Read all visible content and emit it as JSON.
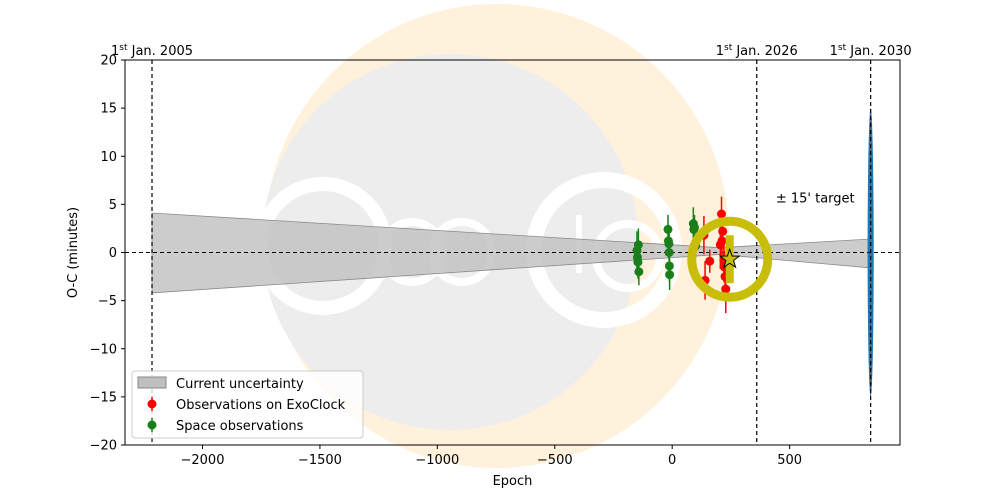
{
  "chart_data": {
    "type": "scatter",
    "xlabel": "Epoch",
    "ylabel": "O-C (minutes)",
    "xlim": [
      -2330,
      970
    ],
    "ylim": [
      -20,
      20
    ],
    "xticks": [
      -2000,
      -1500,
      -1000,
      -500,
      0,
      500
    ],
    "xtick_labels": [
      "−2000",
      "−1500",
      "−1000",
      "−500",
      "0",
      "500"
    ],
    "yticks": [
      -20,
      -15,
      -10,
      -5,
      0,
      5,
      10,
      15,
      20
    ],
    "ytick_labels": [
      "−20",
      "−15",
      "−10",
      "−5",
      "0",
      "5",
      "10",
      "15",
      "20"
    ],
    "grid": false,
    "legend_position": "lower-left",
    "date_markers": [
      {
        "epoch": -2215,
        "label_sup": "st",
        "label_pre": "1",
        "label_post": " Jan. 2005"
      },
      {
        "epoch": 360,
        "label_sup": "st",
        "label_pre": "1",
        "label_post": " Jan. 2026"
      },
      {
        "epoch": 845,
        "label_sup": "st",
        "label_pre": "1",
        "label_post": " Jan. 2030"
      }
    ],
    "uncertainty_band": {
      "name": "Current uncertainty",
      "color": "#bfbfbf",
      "points": [
        [
          -2215,
          4.1
        ],
        [
          -2215,
          -4.2
        ],
        [
          200,
          -0.2
        ],
        [
          845,
          -1.6
        ],
        [
          845,
          1.4
        ],
        [
          200,
          0.5
        ]
      ]
    },
    "target_ellipse": {
      "label": "± 15' target",
      "x": 845,
      "y": 0,
      "rx_data": 52,
      "ry_data": 15,
      "color": "#1f77b4"
    },
    "target_circle": {
      "x": 245,
      "y": -0.7,
      "color": "#c8be0a"
    },
    "star_marker": {
      "x": 245,
      "y": -0.7,
      "color": "#c8be0a"
    },
    "reference_line_y": 0,
    "series": [
      {
        "name": "Observations on ExoClock",
        "color": "#ff0000",
        "points": [
          {
            "x": 205,
            "y": 0.8,
            "err": 2.5
          },
          {
            "x": 210,
            "y": 4.0,
            "err": 1.8
          },
          {
            "x": 215,
            "y": 2.2,
            "err": 1.5
          },
          {
            "x": 220,
            "y": -0.8,
            "err": 2.2
          },
          {
            "x": 222,
            "y": -1.5,
            "err": 1.6
          },
          {
            "x": 225,
            "y": -2.5,
            "err": 2.0
          },
          {
            "x": 228,
            "y": -3.8,
            "err": 2.5
          },
          {
            "x": 212,
            "y": 1.2,
            "err": 2.8
          },
          {
            "x": 135,
            "y": 1.8,
            "err": 2.0
          },
          {
            "x": 140,
            "y": -2.9,
            "err": 2.0
          },
          {
            "x": 160,
            "y": -0.9,
            "err": 1.2
          }
        ]
      },
      {
        "name": "Space observations",
        "color": "#1a7f1a",
        "points": [
          {
            "x": -150,
            "y": 0.2,
            "err": 2.0
          },
          {
            "x": -148,
            "y": -0.5,
            "err": 1.7
          },
          {
            "x": -146,
            "y": -1.0,
            "err": 1.7
          },
          {
            "x": -144,
            "y": 0.8,
            "err": 1.7
          },
          {
            "x": -142,
            "y": -2.0,
            "err": 1.4
          },
          {
            "x": -18,
            "y": 2.4,
            "err": 1.5
          },
          {
            "x": -16,
            "y": 1.2,
            "err": 1.7
          },
          {
            "x": -14,
            "y": 0.9,
            "err": 1.6
          },
          {
            "x": -13,
            "y": 0.0,
            "err": 2.0
          },
          {
            "x": -12,
            "y": -1.4,
            "err": 1.6
          },
          {
            "x": -11,
            "y": -2.3,
            "err": 1.6
          },
          {
            "x": 90,
            "y": 3.0,
            "err": 1.7
          },
          {
            "x": 92,
            "y": 2.4,
            "err": 1.3
          },
          {
            "x": 95,
            "y": 2.6,
            "err": 1.3
          },
          {
            "x": 100,
            "y": 0.7,
            "err": 1.2
          }
        ]
      }
    ]
  }
}
